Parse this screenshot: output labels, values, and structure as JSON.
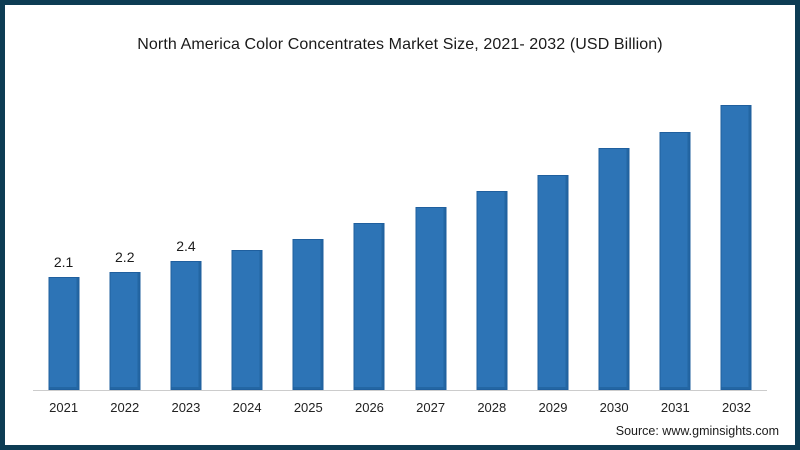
{
  "frame": {
    "border_color": "#0d3c54",
    "background_color": "#ffffff"
  },
  "chart_data": {
    "type": "bar",
    "title": "North America Color Concentrates Market Size, 2021- 2032 (USD Billion)",
    "categories": [
      "2021",
      "2022",
      "2023",
      "2024",
      "2025",
      "2026",
      "2027",
      "2028",
      "2029",
      "2030",
      "2031",
      "2032"
    ],
    "values": [
      2.1,
      2.2,
      2.4,
      2.6,
      2.8,
      3.1,
      3.4,
      3.7,
      4.0,
      4.5,
      4.8,
      5.3
    ],
    "data_labels": [
      "2.1",
      "2.2",
      "2.4",
      "",
      "",
      "",
      "",
      "",
      "",
      "",
      "",
      ""
    ],
    "xlabel": "",
    "ylabel": "",
    "ylim": [
      0,
      5.6
    ],
    "bar_color": "#2d74b6",
    "bar_edge_color": "#1f5f9e",
    "axis_line_color": "#cccccc",
    "gridlines": false,
    "legend": "none"
  },
  "source": {
    "text": "Source: www.gminsights.com"
  }
}
